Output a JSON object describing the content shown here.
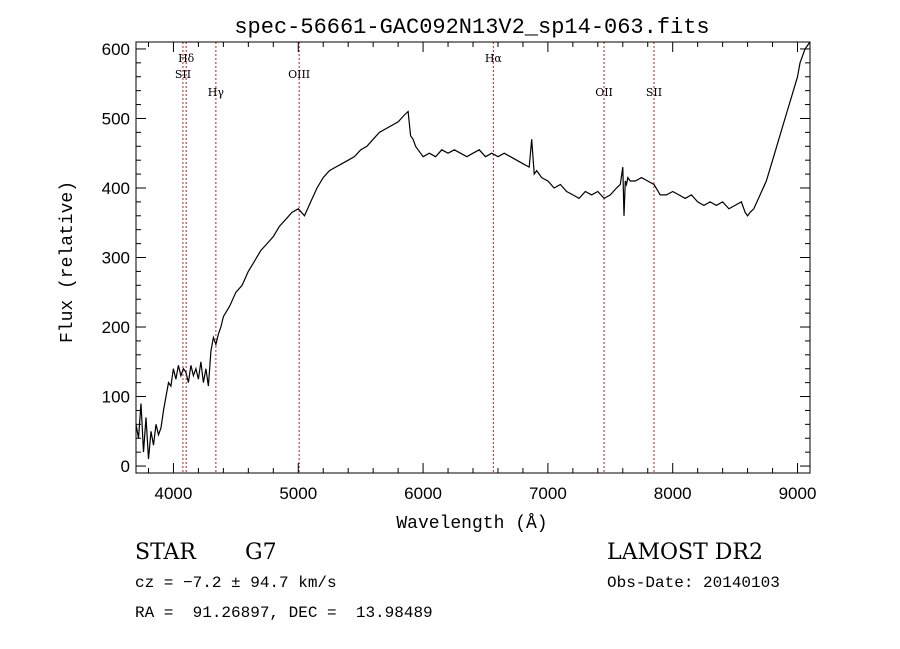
{
  "chart_data": {
    "type": "line",
    "title": "spec-56661-GAC092N13V2_sp14-063.fits",
    "xlabel": "Wavelength (Å)",
    "ylabel": "Flux (relative)",
    "xlim": [
      3700,
      9100
    ],
    "ylim": [
      -10,
      610
    ],
    "xticks": [
      4000,
      5000,
      6000,
      7000,
      8000,
      9000
    ],
    "yticks": [
      0,
      100,
      200,
      300,
      400,
      500,
      600
    ],
    "grid": false,
    "line_color": "#000000",
    "marker_color": "#b22222",
    "series": [
      {
        "x": [
          3700,
          3720,
          3740,
          3760,
          3780,
          3800,
          3820,
          3840,
          3860,
          3880,
          3900,
          3920,
          3940,
          3960,
          3980,
          4000,
          4020,
          4040,
          4060,
          4080,
          4100,
          4120,
          4140,
          4160,
          4180,
          4200,
          4220,
          4240,
          4260,
          4280,
          4300,
          4320,
          4340,
          4360,
          4380,
          4400,
          4450,
          4500,
          4550,
          4600,
          4650,
          4700,
          4750,
          4800,
          4850,
          4900,
          4950,
          5000,
          5050,
          5100,
          5150,
          5200,
          5250,
          5300,
          5350,
          5400,
          5450,
          5500,
          5550,
          5600,
          5650,
          5700,
          5750,
          5800,
          5850,
          5880,
          5900,
          5920,
          5940,
          5960,
          5980,
          6000,
          6050,
          6100,
          6150,
          6200,
          6250,
          6300,
          6350,
          6400,
          6450,
          6500,
          6550,
          6600,
          6650,
          6700,
          6750,
          6800,
          6850,
          6870,
          6890,
          6910,
          6930,
          6950,
          7000,
          7050,
          7100,
          7150,
          7200,
          7250,
          7300,
          7350,
          7400,
          7450,
          7500,
          7550,
          7580,
          7600,
          7610,
          7620,
          7630,
          7640,
          7660,
          7700,
          7750,
          7800,
          7850,
          7900,
          7950,
          8000,
          8050,
          8100,
          8150,
          8200,
          8250,
          8300,
          8350,
          8400,
          8450,
          8500,
          8550,
          8580,
          8600,
          8620,
          8650,
          8700,
          8750,
          8800,
          8850,
          8900,
          8950,
          9000,
          9020,
          9040,
          9060,
          9080,
          9100
        ],
        "y": [
          60,
          40,
          90,
          20,
          70,
          10,
          50,
          30,
          60,
          45,
          55,
          80,
          100,
          120,
          115,
          140,
          125,
          145,
          130,
          140,
          135,
          120,
          145,
          130,
          140,
          125,
          150,
          120,
          140,
          115,
          165,
          185,
          175,
          190,
          200,
          215,
          230,
          250,
          260,
          280,
          295,
          310,
          320,
          330,
          345,
          355,
          365,
          370,
          360,
          380,
          400,
          415,
          425,
          430,
          435,
          440,
          445,
          455,
          460,
          470,
          480,
          485,
          490,
          495,
          505,
          510,
          475,
          470,
          460,
          455,
          450,
          445,
          450,
          445,
          455,
          450,
          455,
          450,
          445,
          450,
          455,
          445,
          450,
          445,
          450,
          445,
          440,
          435,
          430,
          470,
          420,
          425,
          420,
          415,
          410,
          400,
          405,
          395,
          390,
          385,
          395,
          390,
          395,
          385,
          390,
          400,
          405,
          430,
          360,
          410,
          405,
          415,
          410,
          410,
          415,
          410,
          405,
          390,
          390,
          395,
          390,
          385,
          390,
          380,
          375,
          380,
          375,
          380,
          370,
          375,
          380,
          365,
          360,
          365,
          370,
          390,
          410,
          440,
          470,
          500,
          530,
          560,
          580,
          590,
          600,
          605,
          610
        ]
      }
    ],
    "lines": [
      {
        "x": 4076,
        "label": "SII",
        "level": 2
      },
      {
        "x": 4102,
        "label": "Hδ",
        "level": 1
      },
      {
        "x": 4340,
        "label": "Hγ",
        "level": 3
      },
      {
        "x": 5007,
        "label": "OIII",
        "level": 2
      },
      {
        "x": 6563,
        "label": "Hα",
        "level": 1
      },
      {
        "x": 7450,
        "label": "OII",
        "level": 3
      },
      {
        "x": 7850,
        "label": "SII",
        "level": 3
      }
    ]
  },
  "info": {
    "object_class": "STAR",
    "subclass": "G7",
    "survey": "LAMOST DR2",
    "cz": "cz = −7.2 ± 94.7 km/s",
    "obs_date": "Obs-Date: 20140103",
    "coords": "RA =  91.26897, DEC =  13.98489"
  }
}
